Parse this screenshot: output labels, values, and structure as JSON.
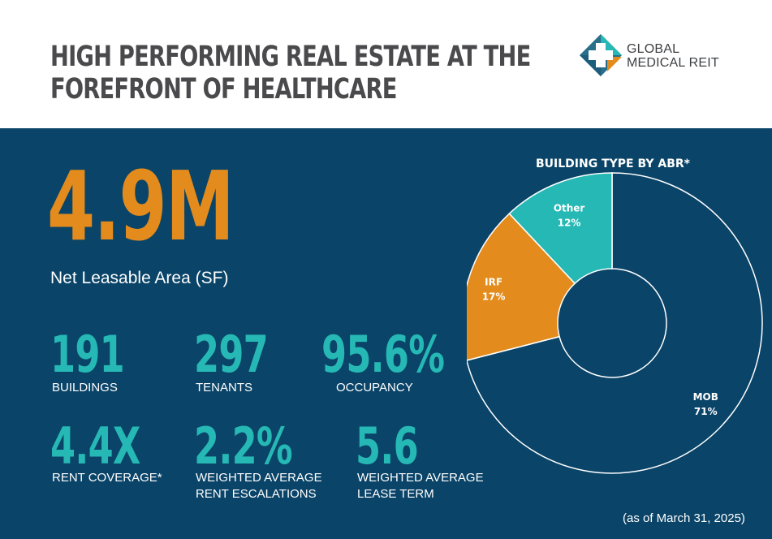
{
  "header": {
    "title_line1": "HIGH PERFORMING REAL ESTATE AT THE",
    "title_line2": "FOREFRONT OF HEALTHCARE",
    "logo_line1": "GLOBAL",
    "logo_line2": "MEDICAL REIT"
  },
  "headline": {
    "value": "4.9M",
    "label": "Net Leasable Area (SF)"
  },
  "stats": [
    {
      "value": "191",
      "label": "BUILDINGS"
    },
    {
      "value": "297",
      "label": "TENANTS"
    },
    {
      "value": "95.6%",
      "label": "OCCUPANCY"
    },
    {
      "value": "4.4X",
      "label": "RENT COVERAGE*"
    },
    {
      "value": "2.2%",
      "label_line1": "WEIGHTED AVERAGE",
      "label_line2": "RENT ESCALATIONS"
    },
    {
      "value": "5.6",
      "label_line1": "WEIGHTED AVERAGE",
      "label_line2": "LEASE TERM"
    }
  ],
  "footnote": "(as of March 31, 2025)",
  "colors": {
    "navy": "#0a4468",
    "orange": "#e38b1c",
    "teal": "#26b8b4",
    "title_gray": "#4a4a4c"
  },
  "chart_data": {
    "type": "pie",
    "title": "BUILDING TYPE BY ABR*",
    "slices": [
      {
        "label": "MOB",
        "value": 71,
        "display": "71%",
        "color": "#0a4468"
      },
      {
        "label": "IRF",
        "value": 17,
        "display": "17%",
        "color": "#e38b1c"
      },
      {
        "label": "Other",
        "value": 12,
        "display": "12%",
        "color": "#26b8b4"
      }
    ]
  }
}
